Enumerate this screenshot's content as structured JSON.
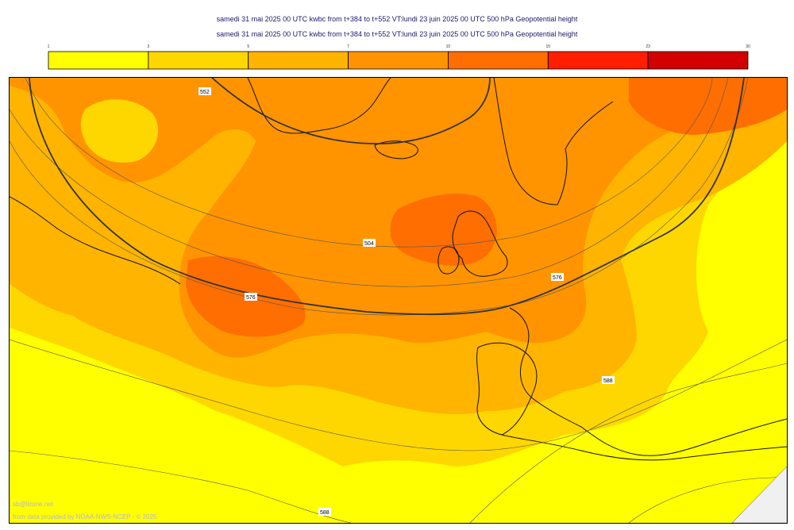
{
  "header": {
    "title_line_1": "samedi 31 mai 2025 00 UTC kwbc from t+384 to t+552 VT:lundi 23 juin 2025 00 UTC 500 hPa  Geopotential height",
    "title_line_2": "samedi 31 mai 2025 00 UTC kwbc from t+384 to t+552 VT:lundi 23 juin 2025 00 UTC 500 hPa  Geopotential height"
  },
  "legend": {
    "ticks": [
      "1",
      "3",
      "5",
      "7",
      "10",
      "15",
      "23",
      "30"
    ],
    "colors": [
      "#ffff00",
      "#ffd700",
      "#ffb400",
      "#ff9400",
      "#ff6e00",
      "#ff1e00",
      "#d20000"
    ]
  },
  "map": {
    "contour_labels": [
      "504",
      "576",
      "576",
      "588",
      "588",
      "552"
    ],
    "colors": {
      "level_1": "#ffff00",
      "level_2": "#ffd700",
      "level_3": "#ffb400",
      "level_4": "#ff9400",
      "level_5": "#ff6e00"
    }
  },
  "footer": {
    "credit_site": "sb@lizone.net",
    "credit_source": "from data provided by NOAA-NWS-NCEP - © 2025"
  }
}
